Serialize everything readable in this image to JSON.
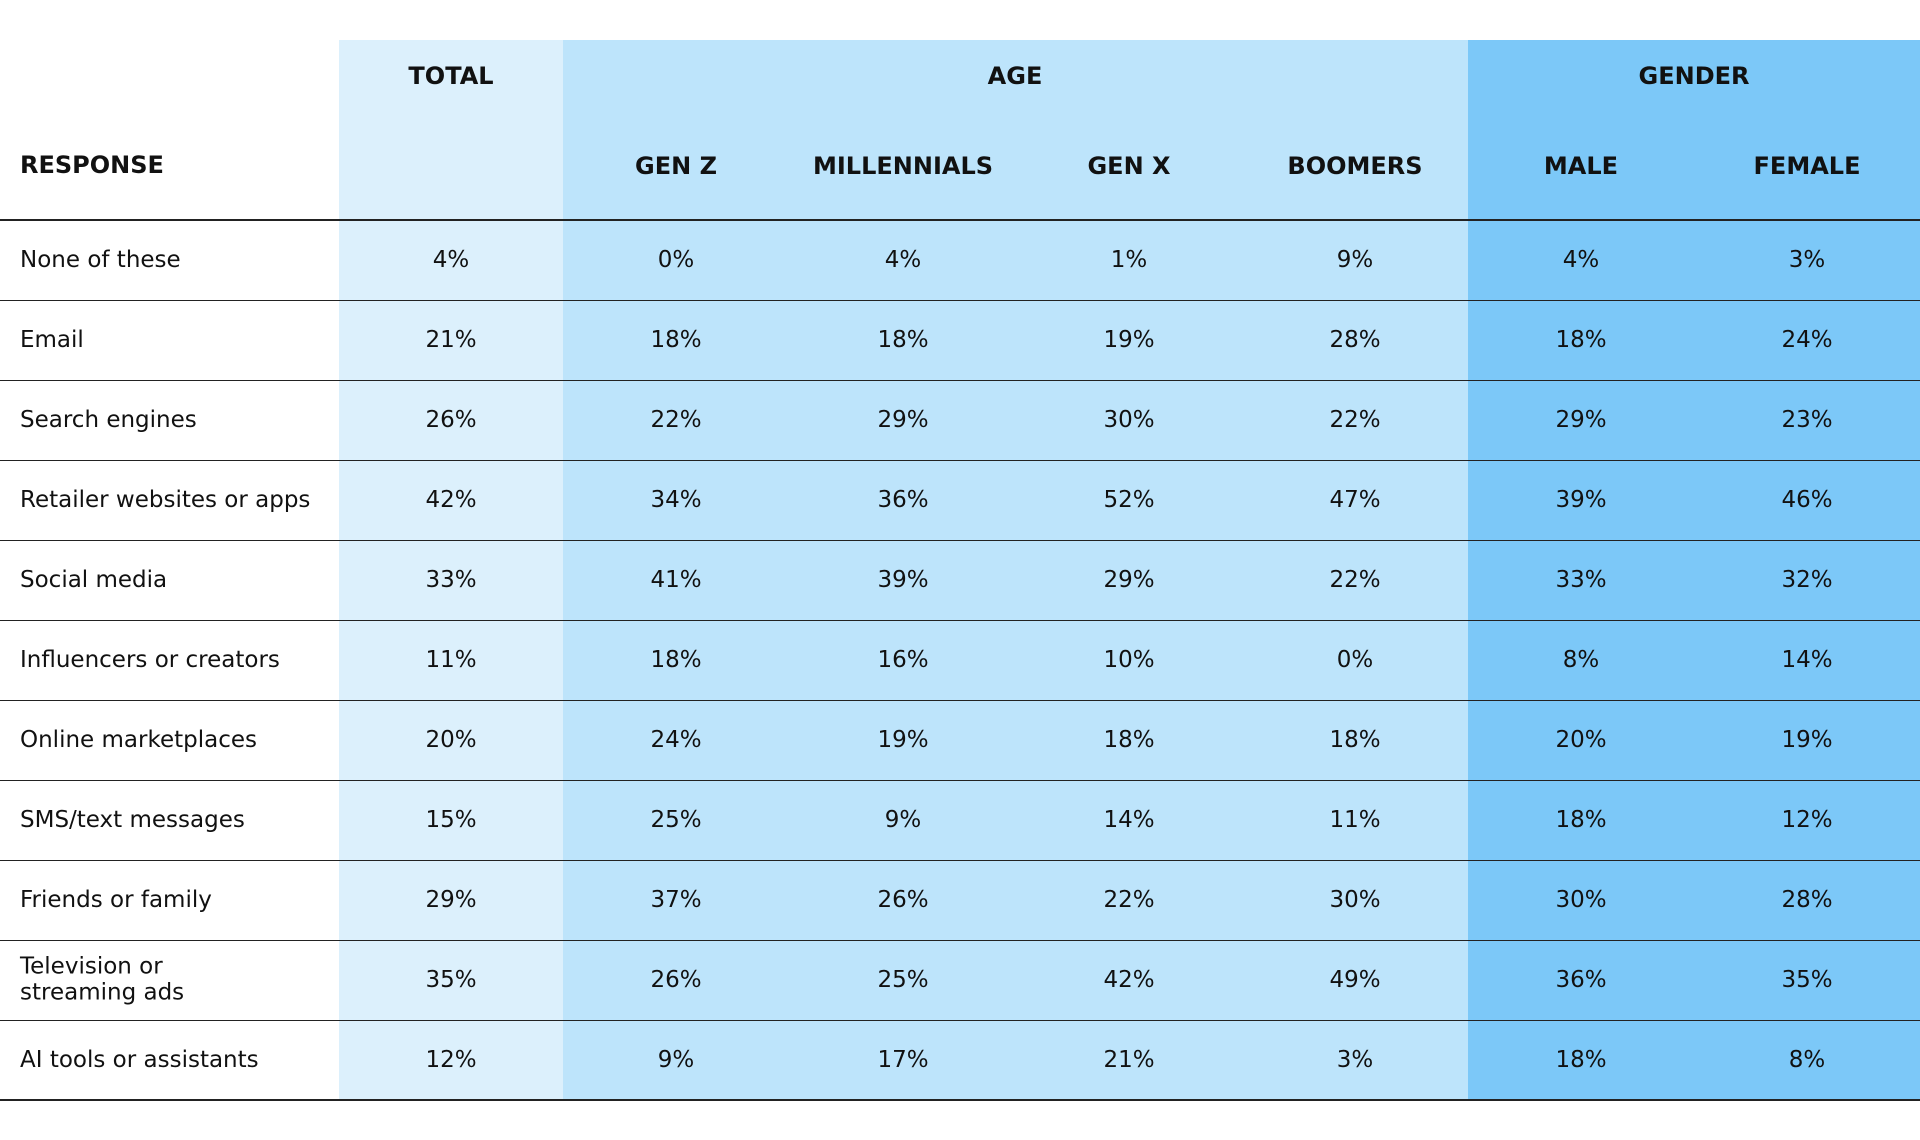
{
  "table": {
    "header": {
      "response": "RESPONSE",
      "total": "TOTAL",
      "age": "AGE",
      "gender": "GENDER",
      "subcolumns": [
        "GEN Z",
        "MILLENNIALS",
        "GEN X",
        "BOOMERS",
        "MALE",
        "FEMALE"
      ]
    },
    "rows": [
      [
        "None of these",
        "4%",
        "0%",
        "4%",
        "1%",
        "9%",
        "4%",
        "3%"
      ],
      [
        "Email",
        "21%",
        "18%",
        "18%",
        "19%",
        "28%",
        "18%",
        "24%"
      ],
      [
        "Search engines",
        "26%",
        "22%",
        "29%",
        "30%",
        "22%",
        "29%",
        "23%"
      ],
      [
        "Retailer websites or apps",
        "42%",
        "34%",
        "36%",
        "52%",
        "47%",
        "39%",
        "46%"
      ],
      [
        "Social media",
        "33%",
        "41%",
        "39%",
        "29%",
        "22%",
        "33%",
        "32%"
      ],
      [
        "Influencers or creators",
        "11%",
        "18%",
        "16%",
        "10%",
        "0%",
        "8%",
        "14%"
      ],
      [
        "Online marketplaces",
        "20%",
        "24%",
        "19%",
        "18%",
        "18%",
        "20%",
        "19%"
      ],
      [
        "SMS/text messages",
        "15%",
        "25%",
        "9%",
        "14%",
        "11%",
        "18%",
        "12%"
      ],
      [
        "Friends or family",
        "29%",
        "37%",
        "26%",
        "22%",
        "30%",
        "30%",
        "28%"
      ],
      [
        "Television or\nstreaming ads",
        "35%",
        "26%",
        "25%",
        "42%",
        "49%",
        "36%",
        "35%"
      ],
      [
        "AI tools or assistants",
        "12%",
        "9%",
        "17%",
        "21%",
        "3%",
        "18%",
        "8%"
      ]
    ]
  }
}
